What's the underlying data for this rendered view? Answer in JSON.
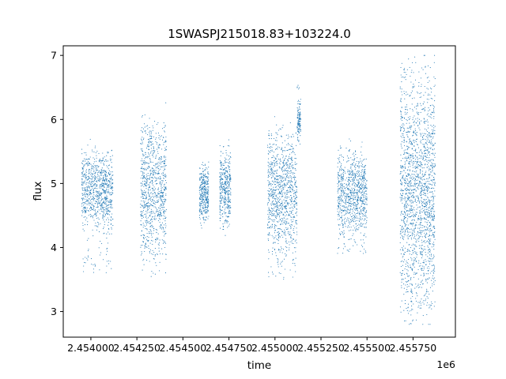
{
  "chart_data": {
    "type": "scatter",
    "title": "1SWASPJ215018.83+103224.0",
    "xlabel": "time",
    "ylabel": "flux",
    "x_offset_label": "1e6",
    "xlim": [
      2453850,
      2455980
    ],
    "ylim": [
      2.6,
      7.15
    ],
    "x_ticks": [
      {
        "value": 2454000,
        "label": "2.454000"
      },
      {
        "value": 2454250,
        "label": "2.454250"
      },
      {
        "value": 2454500,
        "label": "2.454500"
      },
      {
        "value": 2454750,
        "label": "2.454750"
      },
      {
        "value": 2455000,
        "label": "2.455000"
      },
      {
        "value": 2455250,
        "label": "2.455250"
      },
      {
        "value": 2455500,
        "label": "2.455500"
      },
      {
        "value": 2455750,
        "label": "2.455750"
      }
    ],
    "y_ticks": [
      {
        "value": 3,
        "label": "3"
      },
      {
        "value": 4,
        "label": "4"
      },
      {
        "value": 5,
        "label": "5"
      },
      {
        "value": 6,
        "label": "6"
      },
      {
        "value": 7,
        "label": "7"
      }
    ],
    "grid": false,
    "marker_color": "#1f77b4",
    "observing_seasons": [
      {
        "x_start": 2453950,
        "x_end": 2454120,
        "flux_center": 4.9,
        "flux_low": 3.6,
        "flux_high": 5.5,
        "points": 900
      },
      {
        "x_start": 2454270,
        "x_end": 2454410,
        "flux_center": 4.9,
        "flux_low": 3.8,
        "flux_high": 6.0,
        "points": 900
      },
      {
        "x_start": 2454590,
        "x_end": 2454640,
        "flux_center": 4.85,
        "flux_low": 4.4,
        "flux_high": 5.3,
        "points": 350
      },
      {
        "x_start": 2454700,
        "x_end": 2454760,
        "flux_center": 4.9,
        "flux_low": 4.3,
        "flux_high": 5.6,
        "points": 400
      },
      {
        "x_start": 2454960,
        "x_end": 2455120,
        "flux_center": 4.85,
        "flux_low": 3.5,
        "flux_high": 5.8,
        "points": 1000
      },
      {
        "x_start": 2455120,
        "x_end": 2455140,
        "flux_center": 6.0,
        "flux_low": 5.6,
        "flux_high": 6.6,
        "points": 120
      },
      {
        "x_start": 2455340,
        "x_end": 2455500,
        "flux_center": 4.85,
        "flux_low": 3.9,
        "flux_high": 5.5,
        "points": 900
      },
      {
        "x_start": 2455680,
        "x_end": 2455870,
        "flux_center": 4.85,
        "flux_low": 3.0,
        "flux_high": 6.9,
        "points": 1800
      }
    ]
  }
}
